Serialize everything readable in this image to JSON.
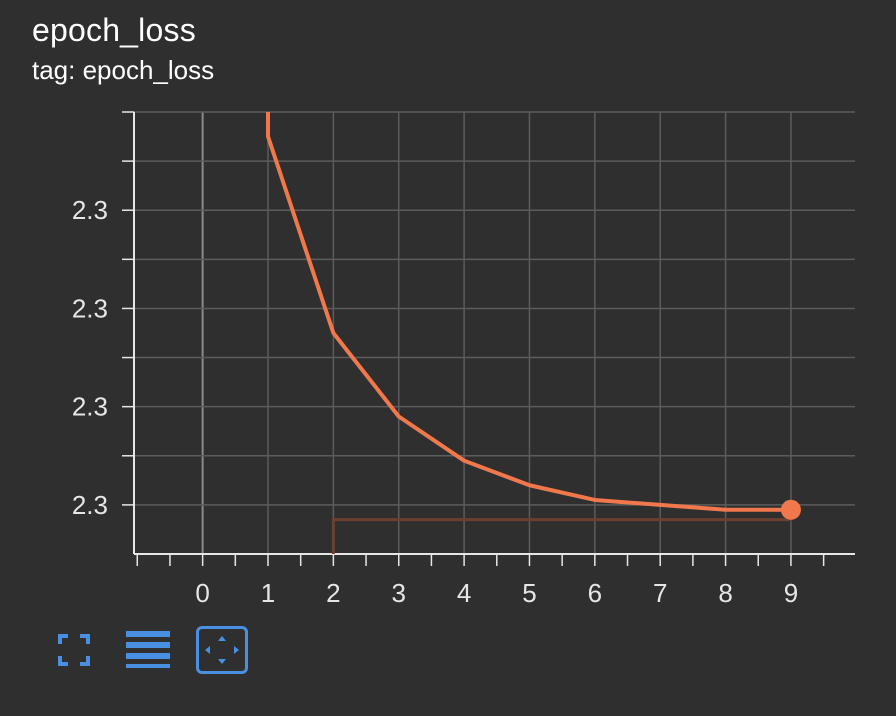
{
  "header": {
    "title": "epoch_loss",
    "subtitle": "tag: epoch_loss"
  },
  "colors": {
    "background": "#2f2f2f",
    "series": "#f0784c",
    "series_faint": "#6b3f33",
    "grid": "#5c5c5c",
    "axis": "#e6e6e6",
    "zero_line": "#8a8a8a",
    "tool_icon": "#4a90e2"
  },
  "toolbar": {
    "icons": [
      "fullscreen-icon",
      "toggle-y-log-scale-icon",
      "fit-domain-icon"
    ],
    "active": "fit-domain-icon"
  },
  "chart_data": {
    "type": "line",
    "title": "epoch_loss",
    "xlabel": "",
    "ylabel": "",
    "x_ticks": [
      "0",
      "1",
      "2",
      "3",
      "4",
      "5",
      "6",
      "7",
      "8",
      "9"
    ],
    "y_tick_labels": [
      "2.3",
      "2.3",
      "2.3",
      "2.3"
    ],
    "y_tick_values": [
      2.3018,
      2.3016,
      2.3014,
      2.3012
    ],
    "xlim": [
      -1.05,
      9.98
    ],
    "ylim": [
      2.3011,
      2.302
    ],
    "grid": true,
    "legend": "none",
    "series": [
      {
        "x": [
          1,
          2,
          3,
          4,
          5,
          6,
          7,
          8,
          9
        ],
        "y": [
          2.30195,
          2.30155,
          2.30138,
          2.30129,
          2.30124,
          2.30121,
          2.3012,
          2.30119,
          2.30119
        ],
        "smoothed": true,
        "start_value_above_view": 2.3021
      },
      {
        "x": [
          2,
          2,
          9
        ],
        "y": [
          2.3011,
          2.30117,
          2.30117
        ],
        "raw": true
      }
    ],
    "last_point_marker": true
  }
}
